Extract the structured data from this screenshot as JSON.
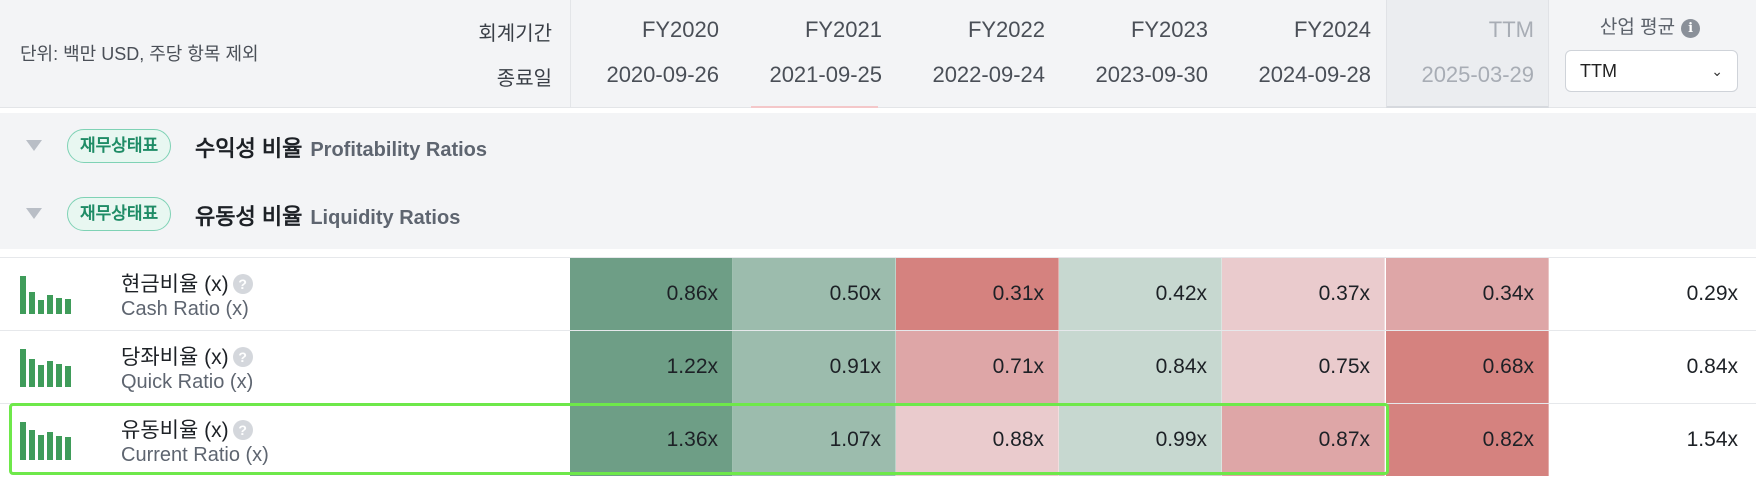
{
  "header": {
    "unit_note": "단위: 백만 USD, 주당 항목 제외",
    "period_label": "회계기간",
    "enddate_label": "종료일",
    "columns": [
      {
        "fy": "FY2020",
        "date": "2020-09-26"
      },
      {
        "fy": "FY2021",
        "date": "2021-09-25"
      },
      {
        "fy": "FY2022",
        "date": "2022-09-24"
      },
      {
        "fy": "FY2023",
        "date": "2023-09-30"
      },
      {
        "fy": "FY2024",
        "date": "2024-09-28"
      },
      {
        "fy": "TTM",
        "date": "2025-03-29"
      }
    ],
    "industry_avg_label": "산업 평균",
    "industry_select_value": "TTM"
  },
  "sections": [
    {
      "badge": "재무상태표",
      "title_ko": "수익성 비율",
      "title_en": "Profitability Ratios"
    },
    {
      "badge": "재무상태표",
      "title_ko": "유동성 비율",
      "title_en": "Liquidity Ratios"
    }
  ],
  "rows": [
    {
      "name_ko": "현금비율 (x)",
      "name_en": "Cash Ratio (x)",
      "spark": [
        0.86,
        0.5,
        0.31,
        0.42,
        0.37,
        0.34
      ],
      "values": [
        "0.86x",
        "0.50x",
        "0.31x",
        "0.42x",
        "0.37x",
        "0.34x"
      ],
      "colors": [
        "#6e9e86",
        "#9cbcad",
        "#d5827f",
        "#c7d8d0",
        "#eacbcd",
        "#dea6a7"
      ],
      "industry": "0.29x"
    },
    {
      "name_ko": "당좌비율 (x)",
      "name_en": "Quick Ratio (x)",
      "spark": [
        1.22,
        0.91,
        0.71,
        0.84,
        0.75,
        0.68
      ],
      "values": [
        "1.22x",
        "0.91x",
        "0.71x",
        "0.84x",
        "0.75x",
        "0.68x"
      ],
      "colors": [
        "#6e9e86",
        "#9cbcad",
        "#dea6a7",
        "#c7d8d0",
        "#eacbcd",
        "#d5827f"
      ],
      "industry": "0.84x"
    },
    {
      "name_ko": "유동비율 (x)",
      "name_en": "Current Ratio (x)",
      "spark": [
        1.36,
        1.07,
        0.88,
        0.99,
        0.87,
        0.82
      ],
      "values": [
        "1.36x",
        "1.07x",
        "0.88x",
        "0.99x",
        "0.87x",
        "0.82x"
      ],
      "colors": [
        "#6e9e86",
        "#9cbcad",
        "#eacbcd",
        "#c7d8d0",
        "#dea6a7",
        "#d5827f"
      ],
      "industry": "1.54x"
    }
  ],
  "icons": {
    "info": "info-icon",
    "help": "question-icon",
    "dropdown": "chevron-down-icon",
    "collapse": "collapse-triangle-icon",
    "sparkline": "bar-sparkline-icon"
  }
}
